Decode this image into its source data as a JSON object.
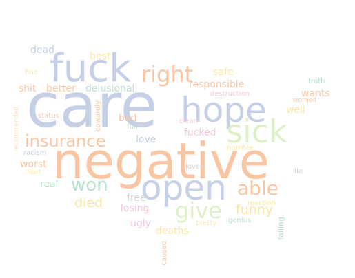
{
  "palette": {
    "blue": "#c5d0e6",
    "orange": "#f9c6a3",
    "green": "#dff0c8",
    "yellow": "#fbe6a3",
    "pink": "#f3c6de",
    "teal": "#b9dfcc",
    "gray": "#d2d2d2"
  },
  "words": [
    {
      "text": "care",
      "color": "blue"
    },
    {
      "text": "negative",
      "color": "orange"
    },
    {
      "text": "fuck",
      "color": "blue"
    },
    {
      "text": "open",
      "color": "blue"
    },
    {
      "text": "hope",
      "color": "blue"
    },
    {
      "text": "sick",
      "color": "green"
    },
    {
      "text": "right",
      "color": "orange"
    },
    {
      "text": "insurance",
      "color": "orange"
    },
    {
      "text": "won",
      "color": "teal"
    },
    {
      "text": "able",
      "color": "orange"
    },
    {
      "text": "give",
      "color": "green"
    },
    {
      "text": "died",
      "color": "yellow"
    },
    {
      "text": "funny",
      "color": "yellow"
    },
    {
      "text": "responsible",
      "color": "orange"
    },
    {
      "text": "delusional",
      "color": "teal"
    },
    {
      "text": "better",
      "color": "orange"
    },
    {
      "text": "shit",
      "color": "orange"
    },
    {
      "text": "dead",
      "color": "blue"
    },
    {
      "text": "best",
      "color": "yellow"
    },
    {
      "text": "safe",
      "color": "yellow"
    },
    {
      "text": "wants",
      "color": "orange"
    },
    {
      "text": "well",
      "color": "yellow"
    },
    {
      "text": "fucked",
      "color": "pink"
    },
    {
      "text": "love",
      "color": "blue"
    },
    {
      "text": "bad",
      "color": "orange"
    },
    {
      "text": "free",
      "color": "gray"
    },
    {
      "text": "losing",
      "color": "pink"
    },
    {
      "text": "ugly",
      "color": "pink"
    },
    {
      "text": "deaths",
      "color": "yellow"
    },
    {
      "text": "worst",
      "color": "orange"
    },
    {
      "text": "real",
      "color": "teal"
    },
    {
      "text": "truth",
      "color": "teal"
    },
    {
      "text": "worried",
      "color": "orange"
    },
    {
      "text": "destruction",
      "color": "pink"
    },
    {
      "text": "fine",
      "color": "yellow"
    },
    {
      "text": "status",
      "color": "orange"
    },
    {
      "text": "full",
      "color": "teal"
    },
    {
      "text": "clean",
      "color": "pink"
    },
    {
      "text": "horrible",
      "color": "yellow"
    },
    {
      "text": "loved",
      "color": "gray"
    },
    {
      "text": "lie",
      "color": "gray"
    },
    {
      "text": "reaction",
      "color": "yellow"
    },
    {
      "text": "pretty",
      "color": "yellow"
    },
    {
      "text": "genius",
      "color": "teal"
    },
    {
      "text": "racism",
      "color": "blue"
    },
    {
      "text": "hurt",
      "color": "yellow"
    },
    {
      "text": "recommended",
      "color": "yellow"
    },
    {
      "text": "cowardly",
      "color": "orange"
    },
    {
      "text": "caused",
      "color": "orange"
    },
    {
      "text": "failing",
      "color": "teal"
    }
  ]
}
